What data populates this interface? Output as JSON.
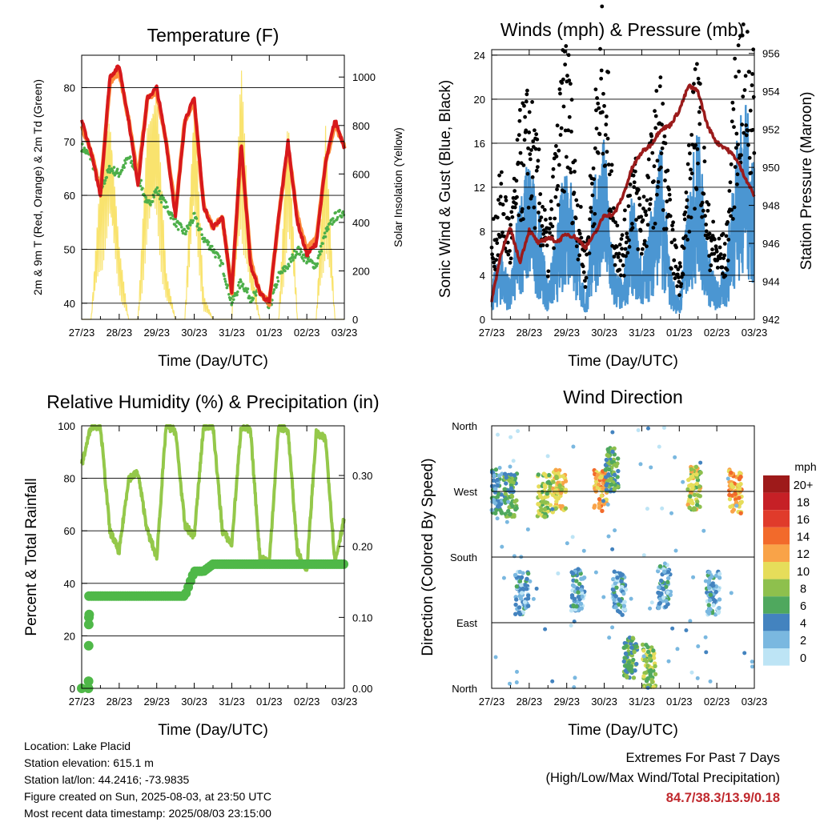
{
  "colors": {
    "temp_2m": "#d7191c",
    "temp_9m": "#fd8d3c",
    "dewpoint": "#4daf4a",
    "solar": "#f9e36e",
    "wind": "#4b96d2",
    "gust": "#000000",
    "pressure": "#9b1b1b",
    "rh": "#94c84a",
    "precip": "#4fb848"
  },
  "x_ticks": [
    "27/23",
    "28/23",
    "29/23",
    "30/23",
    "31/23",
    "01/23",
    "02/23",
    "03/23"
  ],
  "chart_data": [
    {
      "type": "line",
      "title": "Temperature (F)",
      "xlabel": "Time (Day/UTC)",
      "ylabel": "2m & 9m T (Red, Orange) & 2m Td (Green)",
      "y2label": "Solar Insolation (Yellow)",
      "x": [
        0,
        0.25,
        0.5,
        0.75,
        1.0,
        1.25,
        1.5,
        1.75,
        2.0,
        2.25,
        2.5,
        2.75,
        3.0,
        3.25,
        3.5,
        3.75,
        4.0,
        4.25,
        4.5,
        4.75,
        5.0,
        5.25,
        5.5,
        5.75,
        6.0,
        6.25,
        6.5,
        6.75,
        7.0
      ],
      "ylim": [
        37,
        86
      ],
      "y_ticks": [
        40,
        50,
        60,
        70,
        80
      ],
      "y2lim": [
        0,
        1090
      ],
      "y2_ticks": [
        0,
        200,
        400,
        600,
        800,
        1000
      ],
      "series": [
        {
          "id": "temp_2m",
          "values": [
            74,
            68,
            60,
            82,
            84,
            74,
            62,
            78,
            80,
            70,
            56,
            74,
            78,
            58,
            54,
            56,
            42,
            70,
            47,
            42,
            40,
            56,
            70,
            55,
            49,
            51,
            66,
            74,
            69
          ]
        },
        {
          "id": "temp_9m",
          "values": [
            73,
            68,
            61,
            81,
            83,
            74,
            63,
            78,
            79,
            70,
            57,
            74,
            77,
            58,
            54,
            56,
            42,
            69,
            48,
            42,
            40,
            56,
            69,
            56,
            50,
            52,
            66,
            73,
            69
          ]
        },
        {
          "id": "dewpoint",
          "values": [
            69,
            67,
            61,
            65,
            64,
            67,
            64,
            58,
            61,
            58,
            55,
            53,
            56,
            52,
            50,
            47,
            40,
            44,
            41,
            42,
            39,
            45,
            47,
            50,
            48,
            47,
            53,
            56,
            57
          ]
        },
        {
          "id": "solar",
          "values": [
            0,
            0,
            600,
            850,
            300,
            0,
            0,
            800,
            950,
            200,
            0,
            0,
            930,
            100,
            0,
            0,
            0,
            1060,
            250,
            0,
            0,
            0,
            850,
            0,
            0,
            0,
            800,
            0,
            0
          ]
        }
      ]
    },
    {
      "type": "scatter",
      "title": "Winds (mph) & Pressure (mb)",
      "xlabel": "Time (Day/UTC)",
      "ylabel": "Sonic Wind & Gust (Blue, Black)",
      "y2label": "Station Pressure (Maroon)",
      "x": [
        0,
        0.25,
        0.5,
        0.75,
        1.0,
        1.25,
        1.5,
        1.75,
        2.0,
        2.25,
        2.5,
        2.75,
        3.0,
        3.25,
        3.5,
        3.75,
        4.0,
        4.25,
        4.5,
        4.75,
        5.0,
        5.25,
        5.5,
        5.75,
        6.0,
        6.25,
        6.5,
        6.75,
        7.0
      ],
      "ylim": [
        0,
        24.5
      ],
      "y_ticks": [
        0,
        4,
        8,
        12,
        16,
        20,
        24
      ],
      "y2lim": [
        942,
        956.2
      ],
      "y2_ticks": [
        942,
        944,
        946,
        948,
        950,
        952,
        954,
        956
      ],
      "series": [
        {
          "id": "wind",
          "values": [
            2,
            4,
            2,
            7,
            9,
            6,
            2,
            5,
            10,
            5,
            1,
            8,
            10,
            3,
            2,
            7,
            3,
            6,
            10,
            3,
            1,
            7,
            11,
            4,
            2,
            3,
            10,
            12,
            9
          ]
        },
        {
          "id": "gust",
          "values": [
            5,
            9,
            6,
            12,
            14,
            10,
            5,
            12,
            18,
            9,
            4,
            13,
            20,
            7,
            5,
            11,
            7,
            11,
            15,
            7,
            3,
            10,
            17,
            7,
            5,
            5,
            16,
            20,
            15
          ]
        },
        {
          "id": "pressure",
          "values": [
            943,
            945.5,
            946.8,
            945,
            946.7,
            946,
            946.3,
            946.1,
            946.5,
            946.3,
            945.8,
            946.5,
            947.5,
            947.5,
            948.5,
            950,
            950.8,
            951.2,
            952,
            952.2,
            953,
            954.3,
            954,
            952.2,
            951.3,
            951,
            950.5,
            949.5,
            948.5
          ]
        }
      ]
    },
    {
      "type": "line",
      "title": "Relative Humidity (%) & Precipitation (in)",
      "xlabel": "Time (Day/UTC)",
      "ylabel": "Percent & Total Rainfall",
      "x": [
        0,
        0.25,
        0.5,
        0.75,
        1.0,
        1.25,
        1.5,
        1.75,
        2.0,
        2.25,
        2.5,
        2.75,
        3.0,
        3.25,
        3.5,
        3.75,
        4.0,
        4.25,
        4.5,
        4.75,
        5.0,
        5.25,
        5.5,
        5.75,
        6.0,
        6.25,
        6.5,
        6.75,
        7.0
      ],
      "ylim": [
        0,
        100
      ],
      "y_ticks": [
        0,
        20,
        40,
        60,
        80,
        100
      ],
      "y2lim": [
        0,
        0.37
      ],
      "y2_ticks": [
        "0.00",
        "0.10",
        "0.20",
        "0.30"
      ],
      "series": [
        {
          "id": "rh",
          "values": [
            85,
            100,
            100,
            60,
            52,
            80,
            82,
            60,
            50,
            100,
            98,
            62,
            58,
            100,
            100,
            60,
            55,
            100,
            98,
            50,
            48,
            100,
            98,
            52,
            45,
            97,
            95,
            48,
            65
          ]
        },
        {
          "id": "precip",
          "values": [
            0,
            0.13,
            0.13,
            0.13,
            0.13,
            0.13,
            0.13,
            0.13,
            0.13,
            0.13,
            0.13,
            0.13,
            0.165,
            0.165,
            0.175,
            0.175,
            0.175,
            0.175,
            0.175,
            0.175,
            0.175,
            0.175,
            0.175,
            0.175,
            0.175,
            0.175,
            0.175,
            0.175,
            0.175
          ]
        }
      ]
    },
    {
      "type": "scatter",
      "title": "Wind Direction",
      "xlabel": "Time (Day/UTC)",
      "ylabel": "Direction (Colored By Speed)",
      "y_ticks": [
        "North",
        "East",
        "South",
        "West",
        "North"
      ],
      "ylim": [
        0,
        360
      ],
      "legend": {
        "title": "mph",
        "labels": [
          "20+",
          "18",
          "16",
          "14",
          "12",
          "10",
          "8",
          "6",
          "4",
          "2",
          "0"
        ],
        "colors": [
          "#9e1a1a",
          "#c62026",
          "#e03b2b",
          "#f26a2b",
          "#f9a348",
          "#e6dd5a",
          "#8ec04d",
          "#4fa85e",
          "#4383bf",
          "#7ab8e0",
          "#bde4f5"
        ]
      },
      "clusters": [
        {
          "day": 0.1,
          "dir": 270,
          "speed": 4
        },
        {
          "day": 0.5,
          "dir": 265,
          "speed": 6
        },
        {
          "day": 0.8,
          "dir": 130,
          "speed": 3
        },
        {
          "day": 1.4,
          "dir": 265,
          "speed": 8
        },
        {
          "day": 1.8,
          "dir": 270,
          "speed": 10
        },
        {
          "day": 2.3,
          "dir": 135,
          "speed": 3
        },
        {
          "day": 2.9,
          "dir": 270,
          "speed": 12
        },
        {
          "day": 3.2,
          "dir": 300,
          "speed": 6
        },
        {
          "day": 3.4,
          "dir": 130,
          "speed": 3
        },
        {
          "day": 3.7,
          "dir": 40,
          "speed": 6
        },
        {
          "day": 4.2,
          "dir": 30,
          "speed": 8
        },
        {
          "day": 4.6,
          "dir": 140,
          "speed": 3
        },
        {
          "day": 5.4,
          "dir": 275,
          "speed": 9
        },
        {
          "day": 5.9,
          "dir": 130,
          "speed": 3
        },
        {
          "day": 6.5,
          "dir": 270,
          "speed": 12
        }
      ]
    }
  ],
  "footer": {
    "location": "Location: Lake Placid",
    "elevation": "Station elevation: 615.1 m",
    "latlon": "Station lat/lon: 44.2416; -73.9835",
    "created": "Figure created on Sun, 2025-08-03, at 23:50 UTC",
    "recent": "Most recent data timestamp: 2025/08/03 23:15:00",
    "extremes_title": "Extremes For Past 7 Days",
    "extremes_sub": "(High/Low/Max Wind/Total Precipitation)",
    "extremes_values": "84.7/38.3/13.9/0.18"
  }
}
